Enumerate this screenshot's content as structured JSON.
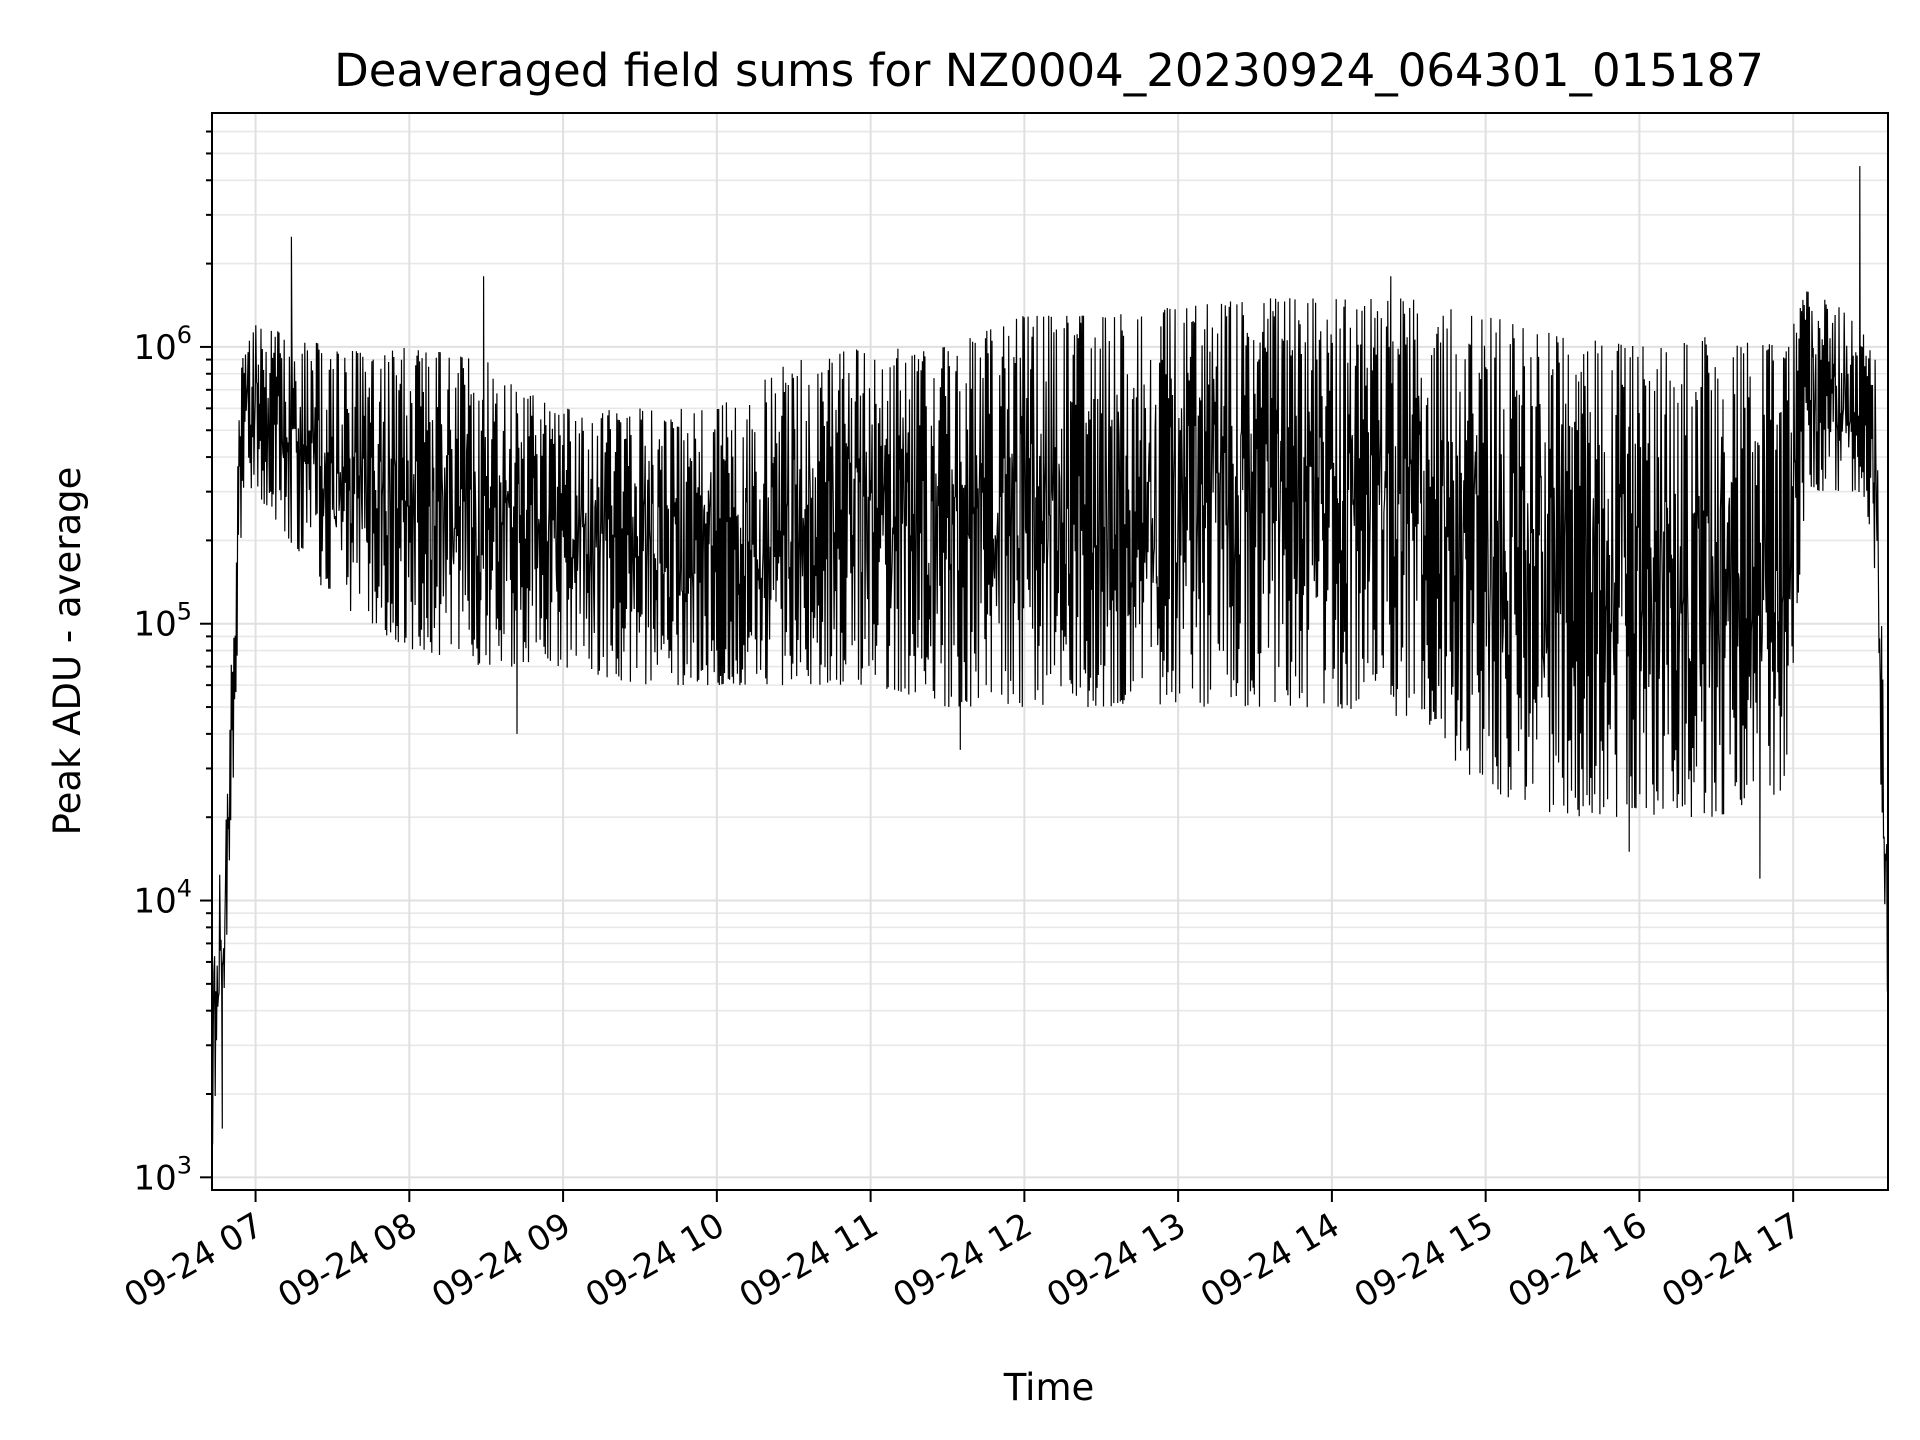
{
  "chart_data": {
    "type": "line",
    "title": "Deaveraged field sums for NZ0004_20230924_064301_015187",
    "xlabel": "Time",
    "ylabel": "Peak ADU - average",
    "yscale": "log",
    "grid": true,
    "xlim": [
      "2023-09-24 06:43",
      "2023-09-24 17:37"
    ],
    "ylim": [
      900,
      7000000
    ],
    "x_ticks": [
      {
        "value": "2023-09-24 07:00",
        "label": "09-24 07"
      },
      {
        "value": "2023-09-24 08:00",
        "label": "09-24 08"
      },
      {
        "value": "2023-09-24 09:00",
        "label": "09-24 09"
      },
      {
        "value": "2023-09-24 10:00",
        "label": "09-24 10"
      },
      {
        "value": "2023-09-24 11:00",
        "label": "09-24 11"
      },
      {
        "value": "2023-09-24 12:00",
        "label": "09-24 12"
      },
      {
        "value": "2023-09-24 13:00",
        "label": "09-24 13"
      },
      {
        "value": "2023-09-24 14:00",
        "label": "09-24 14"
      },
      {
        "value": "2023-09-24 15:00",
        "label": "09-24 15"
      },
      {
        "value": "2023-09-24 16:00",
        "label": "09-24 16"
      },
      {
        "value": "2023-09-24 17:00",
        "label": "09-24 17"
      }
    ],
    "y_ticks": [
      {
        "value": 1000,
        "base": "10",
        "exp": "3"
      },
      {
        "value": 10000,
        "base": "10",
        "exp": "4"
      },
      {
        "value": 100000,
        "base": "10",
        "exp": "5"
      },
      {
        "value": 1000000,
        "base": "10",
        "exp": "6"
      }
    ],
    "series": [
      {
        "color": "#000000",
        "envelope": [
          {
            "x": "2023-09-24 06:43",
            "low": 1000,
            "high": 12000
          },
          {
            "x": "2023-09-24 06:48",
            "low": 5000,
            "high": 13000
          },
          {
            "x": "2023-09-24 06:52",
            "low": 40000,
            "high": 300000
          },
          {
            "x": "2023-09-24 06:55",
            "low": 300000,
            "high": 1000000
          },
          {
            "x": "2023-09-24 07:00",
            "low": 300000,
            "high": 1200000
          },
          {
            "x": "2023-09-24 07:30",
            "low": 120000,
            "high": 1000000
          },
          {
            "x": "2023-09-24 08:00",
            "low": 80000,
            "high": 1000000
          },
          {
            "x": "2023-09-24 08:30",
            "low": 70000,
            "high": 900000
          },
          {
            "x": "2023-09-24 09:00",
            "low": 70000,
            "high": 600000
          },
          {
            "x": "2023-09-24 09:30",
            "low": 60000,
            "high": 600000
          },
          {
            "x": "2023-09-24 10:00",
            "low": 60000,
            "high": 600000
          },
          {
            "x": "2023-09-24 10:30",
            "low": 60000,
            "high": 900000
          },
          {
            "x": "2023-09-24 11:00",
            "low": 60000,
            "high": 1000000
          },
          {
            "x": "2023-09-24 11:30",
            "low": 50000,
            "high": 1000000
          },
          {
            "x": "2023-09-24 12:00",
            "low": 50000,
            "high": 1300000
          },
          {
            "x": "2023-09-24 12:30",
            "low": 50000,
            "high": 1300000
          },
          {
            "x": "2023-09-24 13:00",
            "low": 50000,
            "high": 1400000
          },
          {
            "x": "2023-09-24 13:30",
            "low": 50000,
            "high": 1500000
          },
          {
            "x": "2023-09-24 14:00",
            "low": 50000,
            "high": 1500000
          },
          {
            "x": "2023-09-24 14:30",
            "low": 45000,
            "high": 1500000
          },
          {
            "x": "2023-09-24 15:00",
            "low": 25000,
            "high": 1300000
          },
          {
            "x": "2023-09-24 15:30",
            "low": 20000,
            "high": 1100000
          },
          {
            "x": "2023-09-24 16:00",
            "low": 20000,
            "high": 1000000
          },
          {
            "x": "2023-09-24 16:30",
            "low": 20000,
            "high": 1100000
          },
          {
            "x": "2023-09-24 16:57",
            "low": 25000,
            "high": 1000000
          },
          {
            "x": "2023-09-24 17:05",
            "low": 300000,
            "high": 1600000
          },
          {
            "x": "2023-09-24 17:25",
            "low": 300000,
            "high": 1300000
          },
          {
            "x": "2023-09-24 17:32",
            "low": 150000,
            "high": 900000
          },
          {
            "x": "2023-09-24 17:37",
            "low": 3000,
            "high": 12000
          }
        ],
        "spikes": [
          {
            "x": "2023-09-24 06:47",
            "y": 1500
          },
          {
            "x": "2023-09-24 07:14",
            "y": 2500000
          },
          {
            "x": "2023-09-24 08:29",
            "y": 1800000
          },
          {
            "x": "2023-09-24 08:42",
            "y": 40000
          },
          {
            "x": "2023-09-24 11:35",
            "y": 35000
          },
          {
            "x": "2023-09-24 14:23",
            "y": 1800000
          },
          {
            "x": "2023-09-24 15:56",
            "y": 15000
          },
          {
            "x": "2023-09-24 16:47",
            "y": 12000
          },
          {
            "x": "2023-09-24 17:26",
            "y": 4500000
          }
        ]
      }
    ]
  }
}
